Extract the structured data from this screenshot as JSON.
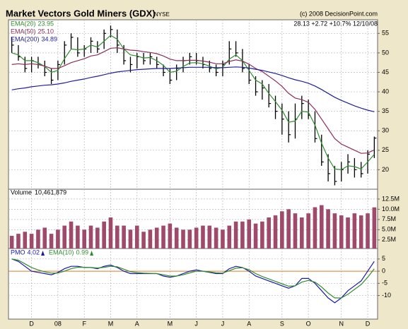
{
  "chart_data": [
    {
      "type": "ohlc",
      "title": "Market Vectors Gold Miners (GDX)",
      "exchange": "NYSE",
      "source": "(c) 2008 DecisionPoint.com",
      "quote": "28.13 +2.72 +10.7% 12/10/08",
      "categories": [
        null,
        null,
        null,
        "D",
        null,
        null,
        null,
        "08",
        null,
        null,
        null,
        "F",
        null,
        null,
        null,
        "M",
        null,
        null,
        null,
        "A",
        null,
        null,
        null,
        null,
        "M",
        null,
        null,
        null,
        "J",
        null,
        null,
        null,
        "J",
        null,
        null,
        null,
        "A",
        null,
        null,
        null,
        null,
        "S",
        null,
        null,
        null,
        "O",
        null,
        null,
        null,
        null,
        "N",
        null,
        null,
        null,
        "D",
        null
      ],
      "close": [
        52,
        49,
        46,
        48,
        47,
        45,
        43,
        47,
        52,
        54,
        50,
        51,
        53,
        51,
        55,
        56,
        52,
        48,
        47,
        49,
        48,
        49,
        47,
        45,
        43,
        46,
        48,
        49,
        48,
        47,
        46,
        45,
        47,
        51,
        50,
        46,
        43,
        40,
        41,
        37,
        35,
        33,
        29,
        33,
        37,
        34,
        28,
        22,
        19,
        17,
        20,
        22,
        20,
        19,
        24,
        28.13
      ],
      "high": [
        54,
        52,
        49,
        49,
        49,
        48,
        46,
        48,
        53,
        55,
        54,
        52,
        54,
        53,
        56,
        57,
        56,
        52,
        49,
        50,
        50,
        50,
        49,
        47,
        46,
        47,
        49,
        50,
        50,
        49,
        48,
        47,
        48,
        53,
        53,
        51,
        47,
        44,
        43,
        42,
        39,
        37,
        35,
        37,
        39,
        38,
        35,
        29,
        24,
        21,
        22,
        24,
        23,
        22,
        25,
        28.5
      ],
      "low": [
        50,
        48,
        45,
        45,
        46,
        44,
        42,
        43,
        47,
        51,
        49,
        49,
        50,
        50,
        51,
        54,
        50,
        47,
        45,
        46,
        47,
        47,
        46,
        44,
        42,
        43,
        45,
        47,
        47,
        46,
        45,
        44,
        44,
        47,
        49,
        45,
        42,
        39,
        38,
        36,
        33,
        29,
        27,
        28,
        33,
        33,
        27,
        21,
        17,
        16,
        17,
        19,
        18,
        18,
        19,
        23
      ],
      "color": "#000000",
      "series": [
        {
          "name": "EMA(20)",
          "last_label": "23.95",
          "color": "#2f8f2f",
          "values": [
            50,
            49.5,
            48,
            48,
            47.5,
            46.5,
            45,
            45.5,
            48.5,
            51,
            50.8,
            51,
            52,
            51.5,
            53,
            54.5,
            53.5,
            51,
            49.5,
            49.2,
            48.7,
            48.8,
            48,
            46.8,
            45,
            45.3,
            46.5,
            47.4,
            47.5,
            47.2,
            46.6,
            45.9,
            46.3,
            48.4,
            49.5,
            48,
            45.5,
            43,
            42,
            39.6,
            37.5,
            35.3,
            32.2,
            32.5,
            35,
            34.8,
            31.5,
            26.8,
            23,
            20.2,
            20,
            21,
            20.8,
            20.2,
            22,
            23.95
          ]
        },
        {
          "name": "EMA(50)",
          "last_label": "25.10",
          "color": "#8a2f5a",
          "values": [
            47,
            47.2,
            47,
            47.2,
            47,
            46.6,
            46,
            46,
            46.7,
            47.5,
            48,
            48.5,
            49.2,
            49.5,
            50.3,
            51.2,
            51.3,
            51,
            50.7,
            50.6,
            50.3,
            50.1,
            49.8,
            49.2,
            48.4,
            48,
            48,
            48.1,
            48.1,
            47.9,
            47.6,
            47.2,
            47.2,
            47.8,
            48.2,
            47.9,
            47.1,
            46,
            45.2,
            44,
            42.8,
            41.4,
            39.6,
            38.4,
            38,
            37.3,
            35.5,
            33,
            30.5,
            28,
            26.6,
            25.8,
            25,
            24.2,
            24.3,
            25.1
          ]
        },
        {
          "name": "EMA(200)",
          "last_label": "34.89",
          "color": "#1f1f9a",
          "values": [
            40.5,
            40.8,
            41,
            41.3,
            41.5,
            41.7,
            41.8,
            42,
            42.3,
            42.7,
            43,
            43.3,
            43.7,
            44,
            44.4,
            44.8,
            45.1,
            45.3,
            45.5,
            45.7,
            45.8,
            45.9,
            46,
            46,
            46,
            46.1,
            46.2,
            46.3,
            46.3,
            46.3,
            46.3,
            46.2,
            46.2,
            46.3,
            46.4,
            46.3,
            46.1,
            45.8,
            45.5,
            45.1,
            44.7,
            44.2,
            43.6,
            43.1,
            42.7,
            42.2,
            41.5,
            40.6,
            39.6,
            38.6,
            37.8,
            37.1,
            36.4,
            35.8,
            35.3,
            34.89
          ]
        }
      ],
      "ylim": [
        15,
        58.5
      ],
      "yticks": [
        20,
        25,
        30,
        35,
        40,
        45,
        50,
        55
      ],
      "grid": true
    },
    {
      "type": "bar",
      "title": "Volume",
      "last_label": "10,461,879",
      "color": "#a04a6a",
      "values": [
        3500000,
        4000000,
        4500000,
        4000000,
        5000000,
        5500000,
        4000000,
        5000000,
        6000000,
        7000000,
        6000000,
        5000000,
        6000000,
        5500000,
        7000000,
        8000000,
        6000000,
        6000000,
        5000000,
        6000000,
        4500000,
        5000000,
        5500000,
        6000000,
        6500000,
        5500000,
        5000000,
        5000000,
        5500000,
        6000000,
        6000000,
        5500000,
        5000000,
        6000000,
        7000000,
        7000000,
        7500000,
        6500000,
        7000000,
        8000000,
        8500000,
        9500000,
        10000000,
        9000000,
        8000000,
        9000000,
        10500000,
        11000000,
        10000000,
        9000000,
        8500000,
        8000000,
        9000000,
        8500000,
        9000000,
        10461879
      ],
      "ylim": [
        400000,
        14900000
      ],
      "yticks": [
        {
          "value": 2500000,
          "label": "2.5M"
        },
        {
          "value": 5000000,
          "label": "5.0M"
        },
        {
          "value": 7500000,
          "label": "7.5M"
        },
        {
          "value": 10000000,
          "label": "10.0M"
        },
        {
          "value": 12500000,
          "label": "12.5M"
        }
      ],
      "grid": true
    },
    {
      "type": "line",
      "zero_line_color": "#e07a20",
      "series": [
        {
          "name": "PMO",
          "last_label": "4.02",
          "color": "#1a1aa8",
          "values": [
            5,
            4,
            2,
            0,
            -0.5,
            -1,
            -1.5,
            -0.5,
            1,
            2,
            2,
            1.5,
            1.5,
            1,
            2,
            2.5,
            1.5,
            0,
            -1,
            -1,
            -1,
            -1,
            -1,
            -2,
            -2.5,
            -2,
            -1,
            0,
            0.5,
            0,
            -0.5,
            -1,
            -1,
            1,
            2,
            1.5,
            0,
            -2,
            -3,
            -4,
            -5,
            -6,
            -7,
            -6,
            -3,
            -3,
            -5,
            -8,
            -11,
            -13,
            -11,
            -8,
            -6,
            -4,
            0,
            4.02
          ]
        },
        {
          "name": "EMA(10)",
          "last_label": "0.99",
          "color": "#2f8f2f",
          "values": [
            5,
            4.5,
            3,
            1.5,
            0.5,
            -0.3,
            -0.8,
            -0.8,
            0,
            1,
            1.6,
            1.6,
            1.5,
            1.3,
            1.6,
            2,
            1.8,
            0.8,
            -0.2,
            -0.6,
            -0.8,
            -0.9,
            -1,
            -1.5,
            -2,
            -2,
            -1.5,
            -0.7,
            0,
            0,
            -0.3,
            -0.7,
            -0.8,
            0.2,
            1.2,
            1.4,
            0.6,
            -1,
            -2.2,
            -3.2,
            -4.2,
            -5.2,
            -6.2,
            -6,
            -4.5,
            -3.8,
            -4.5,
            -6.5,
            -9,
            -11,
            -11,
            -9.5,
            -7.5,
            -5.5,
            -2.5,
            0.99
          ]
        }
      ],
      "ylim": [
        -19.7,
        9.3
      ],
      "yticks": [
        -10,
        -5,
        0,
        5
      ],
      "grid": true
    }
  ]
}
